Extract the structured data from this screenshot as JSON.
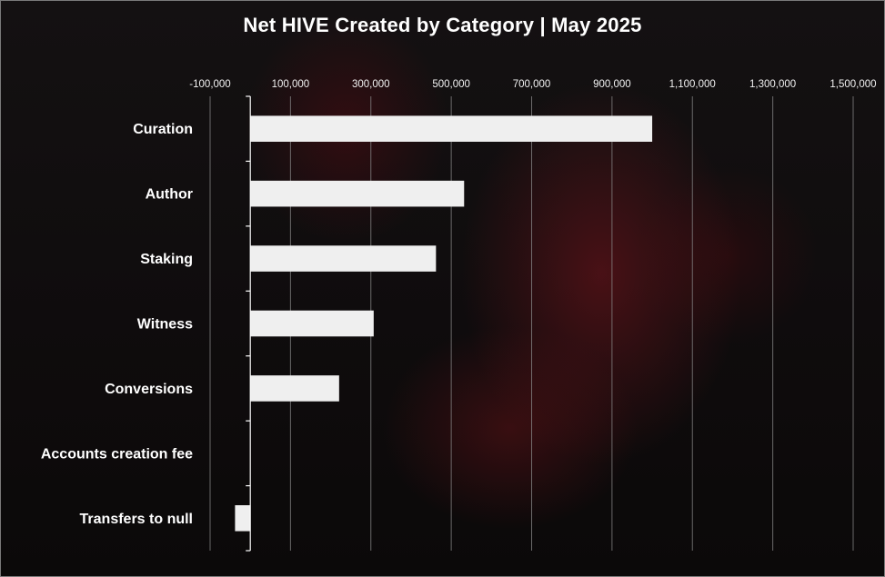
{
  "chart_data": {
    "type": "bar",
    "orientation": "horizontal",
    "title": "Net HIVE Created by Category | May 2025",
    "categories": [
      "Curation",
      "Author",
      "Staking",
      "Witness",
      "Conversions",
      "Accounts creation fee",
      "Transfers to null"
    ],
    "values": [
      1000000,
      532000,
      462000,
      307000,
      221000,
      0,
      -38000
    ],
    "x_ticks": [
      -100000,
      100000,
      300000,
      500000,
      700000,
      900000,
      1100000,
      1300000,
      1500000
    ],
    "x_tick_labels": [
      "-100,000",
      "100,000",
      "300,000",
      "500,000",
      "700,000",
      "900,000",
      "1,100,000",
      "1,300,000",
      "1,500,000"
    ],
    "xlim": [
      -100000,
      1500000
    ],
    "xlabel": "",
    "ylabel": "",
    "grid": true,
    "legend": "none",
    "bar_color": "#efefef",
    "grid_color": "#8a8a8a",
    "axis_color": "#ffffff"
  }
}
